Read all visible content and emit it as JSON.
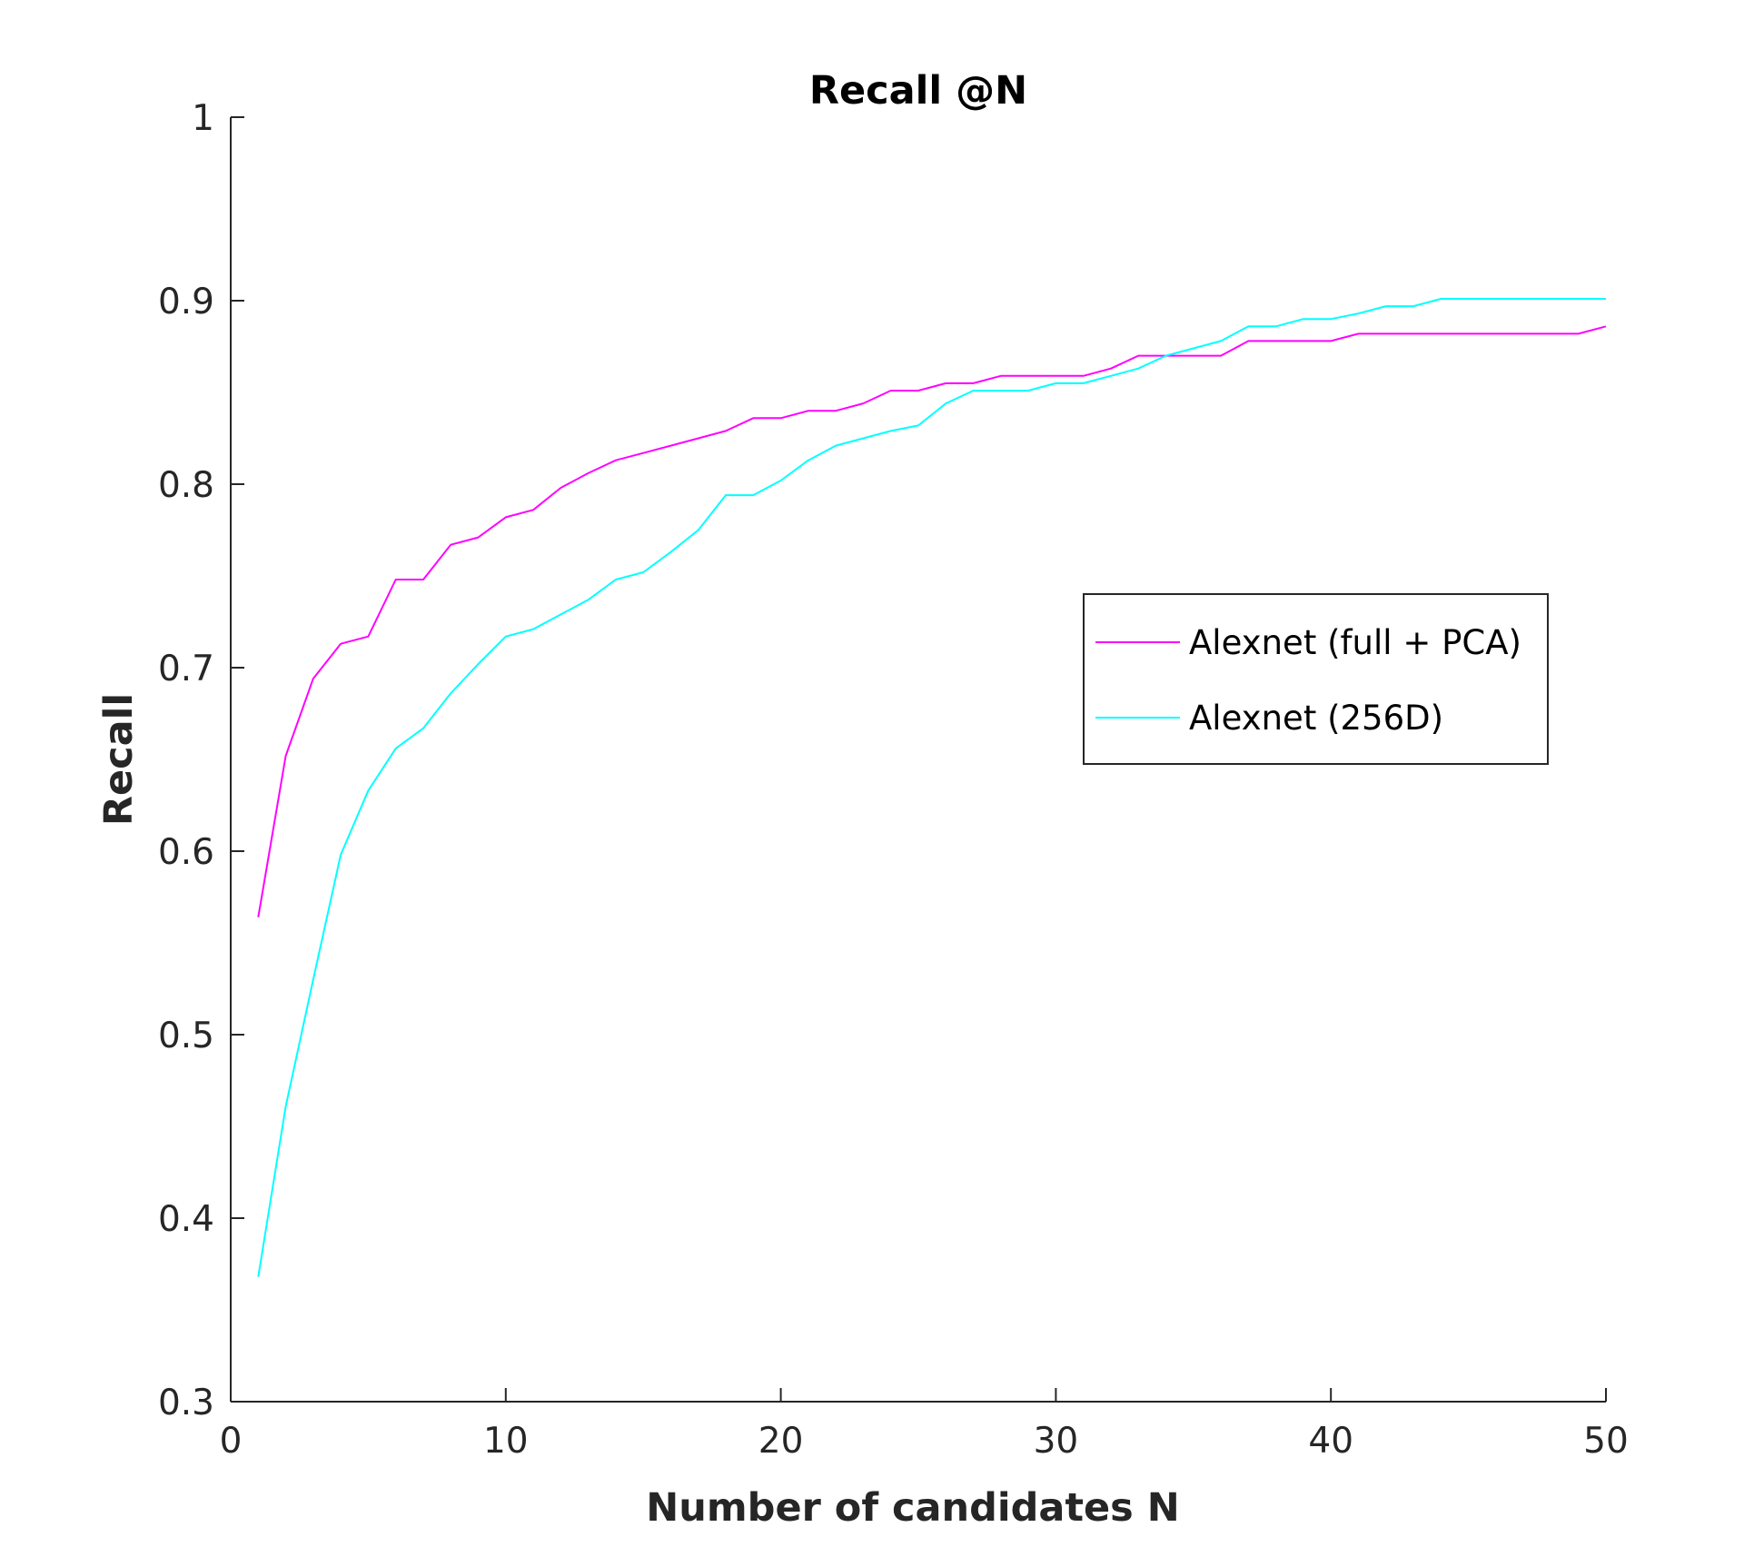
{
  "chart_data": {
    "type": "line",
    "title": "Recall @N",
    "xlabel": "Number of candidates N",
    "ylabel": "Recall",
    "xlim": [
      0,
      50
    ],
    "ylim": [
      0.3,
      1
    ],
    "xticks": [
      0,
      10,
      20,
      30,
      40,
      50
    ],
    "yticks": [
      0.3,
      0.4,
      0.5,
      0.6,
      0.7,
      0.8,
      0.9,
      1
    ],
    "xtick_labels": [
      "0",
      "10",
      "20",
      "30",
      "40",
      "50"
    ],
    "ytick_labels": [
      "0.3",
      "0.4",
      "0.5",
      "0.6",
      "0.7",
      "0.8",
      "0.9",
      "1"
    ],
    "grid": false,
    "legend_position": "right",
    "x": [
      1,
      2,
      3,
      4,
      5,
      6,
      7,
      8,
      9,
      10,
      11,
      12,
      13,
      14,
      15,
      16,
      17,
      18,
      19,
      20,
      21,
      22,
      23,
      24,
      25,
      26,
      27,
      28,
      29,
      30,
      31,
      32,
      33,
      34,
      35,
      36,
      37,
      38,
      39,
      40,
      41,
      42,
      43,
      44,
      45,
      46,
      47,
      48,
      49,
      50
    ],
    "series": [
      {
        "name": "Alexnet (full + PCA)",
        "color": "#ff00ff",
        "values": [
          0.564,
          0.652,
          0.694,
          0.713,
          0.717,
          0.748,
          0.748,
          0.767,
          0.771,
          0.782,
          0.786,
          0.798,
          0.806,
          0.813,
          0.817,
          0.821,
          0.825,
          0.829,
          0.836,
          0.836,
          0.84,
          0.84,
          0.844,
          0.851,
          0.851,
          0.855,
          0.855,
          0.859,
          0.859,
          0.859,
          0.859,
          0.863,
          0.87,
          0.87,
          0.87,
          0.87,
          0.878,
          0.878,
          0.878,
          0.878,
          0.882,
          0.882,
          0.882,
          0.882,
          0.882,
          0.882,
          0.882,
          0.882,
          0.882,
          0.886
        ]
      },
      {
        "name": "Alexnet (256D)",
        "color": "#00ffff",
        "values": [
          0.368,
          0.461,
          0.53,
          0.598,
          0.633,
          0.656,
          0.667,
          0.686,
          0.702,
          0.717,
          0.721,
          0.729,
          0.737,
          0.748,
          0.752,
          0.763,
          0.775,
          0.794,
          0.794,
          0.802,
          0.813,
          0.821,
          0.825,
          0.829,
          0.832,
          0.844,
          0.851,
          0.851,
          0.851,
          0.855,
          0.855,
          0.859,
          0.863,
          0.87,
          0.874,
          0.878,
          0.886,
          0.886,
          0.89,
          0.89,
          0.893,
          0.897,
          0.897,
          0.901,
          0.901,
          0.901,
          0.901,
          0.901,
          0.901,
          0.901
        ]
      }
    ]
  }
}
